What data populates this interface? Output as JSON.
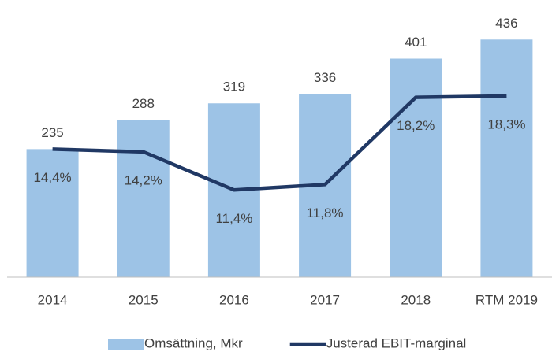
{
  "chart_data": {
    "type": "bar-line",
    "categories": [
      "2014",
      "2015",
      "2016",
      "2017",
      "2018",
      "RTM 2019"
    ],
    "series": [
      {
        "name": "Omsättning, Mkr",
        "type": "bar",
        "color": "#9dc3e6",
        "values": [
          235,
          288,
          319,
          336,
          401,
          436
        ]
      },
      {
        "name": "Justerad EBIT-marginal",
        "type": "line",
        "axis": "y2",
        "color": "#203864",
        "values": [
          14.4,
          14.2,
          11.4,
          11.8,
          18.2,
          18.3
        ],
        "value_labels": [
          "14,4%",
          "14,2%",
          "11,4%",
          "11,8%",
          "18,2%",
          "18,3%"
        ]
      }
    ],
    "ylim": [
      0,
      500
    ],
    "y2lim": [
      5,
      25
    ],
    "legend": "bottom"
  }
}
